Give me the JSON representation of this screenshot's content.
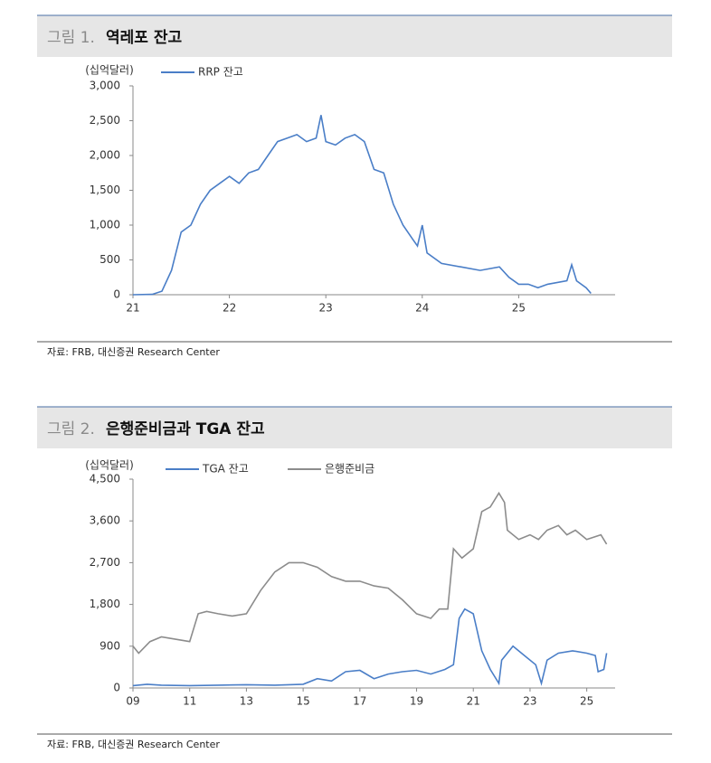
{
  "chart_data": [
    {
      "type": "line",
      "label": "그림 1.",
      "title": "역레포 잔고",
      "unit": "(십억달러)",
      "source": "자료: FRB, 대신증권 Research Center",
      "xlim": [
        21,
        26
      ],
      "xticks": [
        21,
        22,
        23,
        24,
        25
      ],
      "ylim": [
        0,
        3000
      ],
      "yticks": [
        0,
        500,
        {
          "value": 1000,
          "label": "1,000"
        },
        {
          "value": 1500,
          "label": "1,500"
        },
        {
          "value": 2000,
          "label": "2,000"
        },
        {
          "value": 2500,
          "label": "2,500"
        },
        {
          "value": 3000,
          "label": "3,000"
        }
      ],
      "series": [
        {
          "name": "RRP 잔고",
          "color": "#4a7ec7",
          "x": [
            21.0,
            21.2,
            21.3,
            21.4,
            21.5,
            21.6,
            21.7,
            21.8,
            21.9,
            22.0,
            22.1,
            22.2,
            22.3,
            22.4,
            22.5,
            22.6,
            22.7,
            22.8,
            22.9,
            22.95,
            23.0,
            23.1,
            23.2,
            23.3,
            23.4,
            23.5,
            23.6,
            23.7,
            23.8,
            23.9,
            23.95,
            24.0,
            24.05,
            24.2,
            24.4,
            24.6,
            24.8,
            24.9,
            25.0,
            25.1,
            25.2,
            25.3,
            25.5,
            25.55,
            25.6,
            25.7,
            25.75
          ],
          "values": [
            0,
            5,
            50,
            350,
            900,
            1000,
            1300,
            1500,
            1600,
            1700,
            1600,
            1750,
            1800,
            2000,
            2200,
            2250,
            2300,
            2200,
            2250,
            2580,
            2200,
            2150,
            2250,
            2300,
            2200,
            1800,
            1750,
            1300,
            1000,
            800,
            700,
            1000,
            600,
            450,
            400,
            350,
            400,
            250,
            150,
            150,
            100,
            150,
            200,
            430,
            200,
            100,
            20
          ]
        }
      ]
    },
    {
      "type": "line",
      "label": "그림 2.",
      "title": "은행준비금과 TGA 잔고",
      "unit": "(십억달러)",
      "source": "자료: FRB, 대신증권 Research Center",
      "xlim": [
        9,
        26
      ],
      "xticks": [
        {
          "value": 9,
          "label": "09"
        },
        11,
        13,
        15,
        17,
        19,
        21,
        23,
        25
      ],
      "ylim": [
        0,
        4500
      ],
      "yticks": [
        0,
        900,
        {
          "value": 1800,
          "label": "1,800"
        },
        {
          "value": 2700,
          "label": "2,700"
        },
        {
          "value": 3600,
          "label": "3,600"
        },
        {
          "value": 4500,
          "label": "4,500"
        }
      ],
      "series": [
        {
          "name": "TGA 잔고",
          "color": "#4a7ec7",
          "x": [
            9,
            9.5,
            10,
            11,
            12,
            13,
            14,
            15,
            15.5,
            16,
            16.5,
            17,
            17.5,
            18,
            18.5,
            19,
            19.5,
            20,
            20.3,
            20.5,
            20.7,
            21,
            21.3,
            21.6,
            21.9,
            22,
            22.4,
            22.8,
            23.2,
            23.4,
            23.6,
            24,
            24.5,
            25,
            25.3,
            25.4,
            25.6,
            25.7
          ],
          "values": [
            50,
            80,
            60,
            50,
            60,
            70,
            60,
            80,
            200,
            150,
            350,
            380,
            200,
            300,
            350,
            380,
            300,
            400,
            500,
            1500,
            1700,
            1600,
            800,
            400,
            100,
            600,
            900,
            700,
            500,
            100,
            600,
            750,
            800,
            750,
            700,
            350,
            400,
            750
          ]
        },
        {
          "name": "은행준비금",
          "color": "#8c8c8c",
          "x": [
            9,
            9.2,
            9.6,
            10,
            10.5,
            11,
            11.3,
            11.6,
            12,
            12.5,
            13,
            13.5,
            14,
            14.5,
            15,
            15.5,
            16,
            16.5,
            17,
            17.5,
            18,
            18.5,
            19,
            19.5,
            19.8,
            20.1,
            20.3,
            20.6,
            21,
            21.3,
            21.6,
            21.9,
            22.1,
            22.2,
            22.6,
            23,
            23.3,
            23.6,
            24,
            24.3,
            24.6,
            25,
            25.5,
            25.7
          ],
          "values": [
            900,
            750,
            1000,
            1100,
            1050,
            1000,
            1600,
            1650,
            1600,
            1550,
            1600,
            2100,
            2500,
            2700,
            2700,
            2600,
            2400,
            2300,
            2300,
            2200,
            2150,
            1900,
            1600,
            1500,
            1700,
            1700,
            3000,
            2800,
            3000,
            3800,
            3900,
            4200,
            4000,
            3400,
            3200,
            3300,
            3200,
            3400,
            3500,
            3300,
            3400,
            3200,
            3300,
            3100
          ]
        }
      ]
    }
  ]
}
